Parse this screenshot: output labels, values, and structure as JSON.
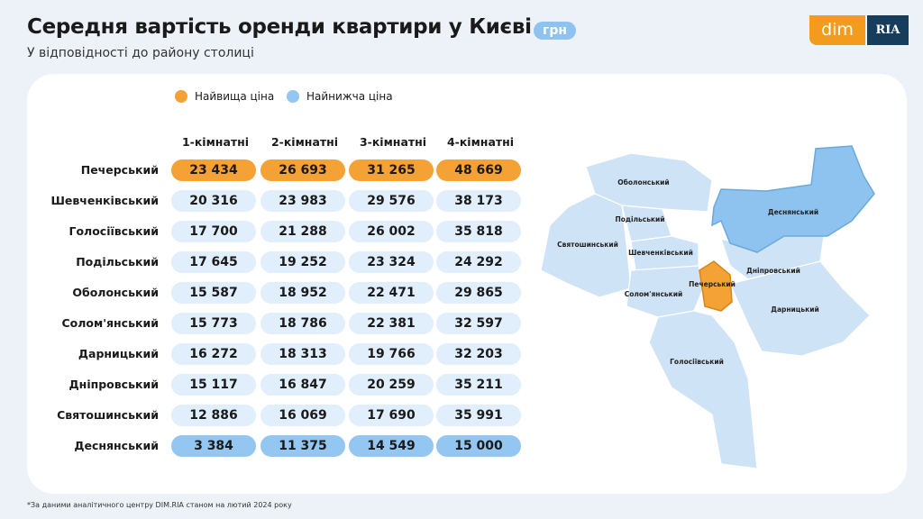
{
  "header": {
    "title": "Середня вартість оренди квартири у Києві",
    "unit_badge": "грн",
    "subtitle": "У відповідності до району столиці"
  },
  "logo": {
    "left": "dim",
    "right": "RIA"
  },
  "legend": [
    {
      "label": "Найвища ціна",
      "color": "#f4a236"
    },
    {
      "label": "Найнижча ціна",
      "color": "#93c6f0"
    }
  ],
  "chart_data": {
    "type": "table",
    "columns": [
      "1-кімнатні",
      "2-кімнатні",
      "3-кімнатні",
      "4-кімнатні"
    ],
    "rows": [
      {
        "district": "Печерський",
        "values": [
          "23 434",
          "26 693",
          "31 265",
          "48 669"
        ],
        "highlight": "highest"
      },
      {
        "district": "Шевченківський",
        "values": [
          "20 316",
          "23 983",
          "29 576",
          "38 173"
        ]
      },
      {
        "district": "Голосіївський",
        "values": [
          "17 700",
          "21 288",
          "26 002",
          "35 818"
        ]
      },
      {
        "district": "Подільський",
        "values": [
          "17 645",
          "19 252",
          "23 324",
          "24 292"
        ]
      },
      {
        "district": "Оболонський",
        "values": [
          "15 587",
          "18 952",
          "22 471",
          "29 865"
        ]
      },
      {
        "district": "Солом'янський",
        "values": [
          "15 773",
          "18 786",
          "22 381",
          "32 597"
        ]
      },
      {
        "district": "Дарницький",
        "values": [
          "16 272",
          "18 313",
          "19 766",
          "32 203"
        ]
      },
      {
        "district": "Дніпровський",
        "values": [
          "15 117",
          "16 847",
          "20 259",
          "35 211"
        ]
      },
      {
        "district": "Святошинський",
        "values": [
          "12 886",
          "16 069",
          "17 690",
          "35 991"
        ]
      },
      {
        "district": "Деснянський",
        "values": [
          "3 384",
          "11 375",
          "14 549",
          "15 000"
        ],
        "highlight": "lowest"
      }
    ]
  },
  "map": {
    "labels": [
      "Оболонський",
      "Деснянський",
      "Подільський",
      "Святошинський",
      "Шевченківський",
      "Дніпровський",
      "Печерський",
      "Солом'янський",
      "Дарницький",
      "Голосіївський"
    ],
    "colors": {
      "default": "#cfe3f6",
      "lowest": "#8ec3f0",
      "highest": "#f4a236"
    }
  },
  "footnote": "*За даними аналітичного центру DIM.RIA станом на лютий 2024 року"
}
